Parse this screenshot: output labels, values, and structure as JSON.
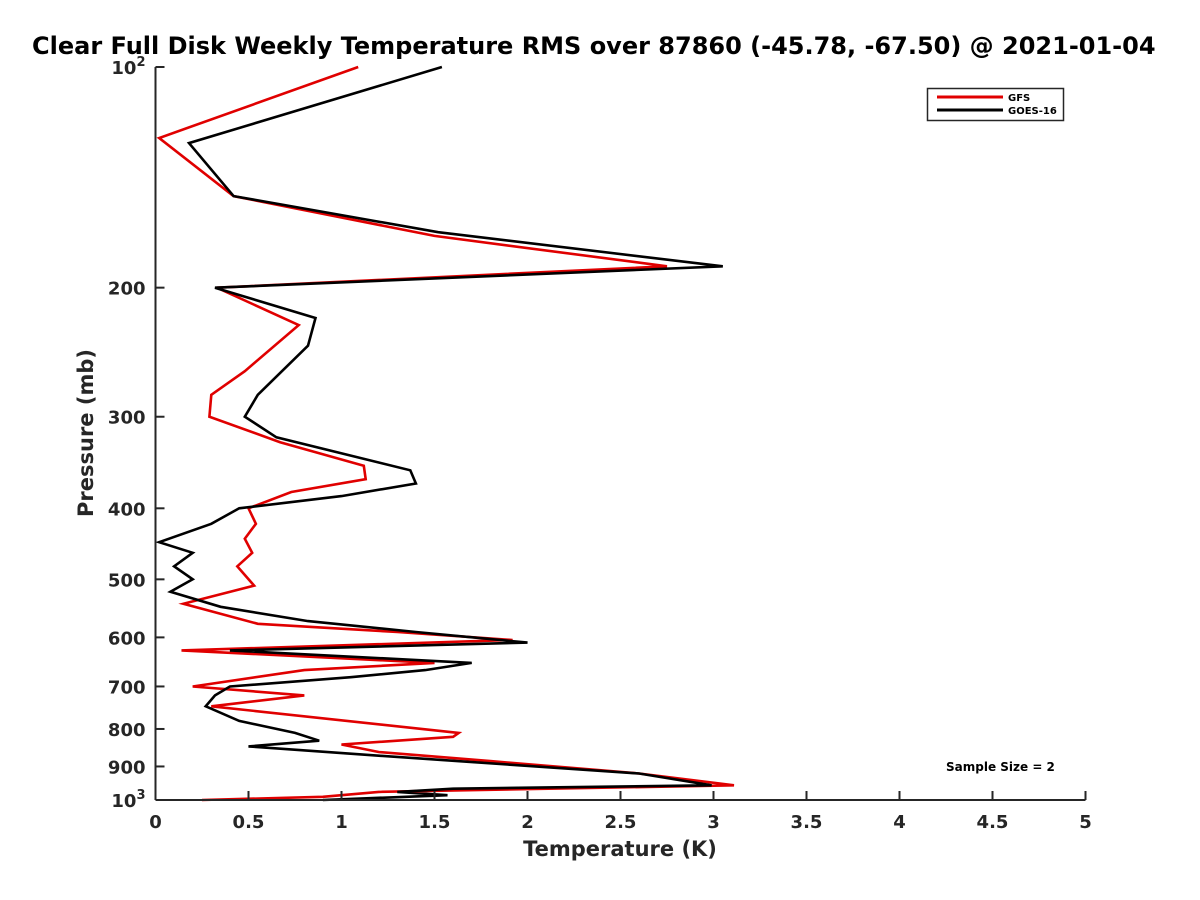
{
  "chart_data": {
    "type": "line",
    "title": "Clear Full Disk Weekly Temperature RMS over 87860 (-45.78, -67.50) @ 2021-01-04",
    "xlabel": "Temperature (K)",
    "ylabel": "Pressure (mb)",
    "xlim": [
      0,
      5
    ],
    "ylim": [
      1000,
      100
    ],
    "y_scale": "log",
    "y_reversed": true,
    "x_ticks": [
      0,
      0.5,
      1,
      1.5,
      2,
      2.5,
      3,
      3.5,
      4,
      4.5,
      5
    ],
    "x_tick_labels": [
      "0",
      "0.5",
      "1",
      "1.5",
      "2",
      "2.5",
      "3",
      "3.5",
      "4",
      "4.5",
      "5"
    ],
    "y_ticks": [
      {
        "value": 100,
        "base": "10",
        "exp": "2"
      },
      {
        "value": 200,
        "label": "200"
      },
      {
        "value": 300,
        "label": "300"
      },
      {
        "value": 400,
        "label": "400"
      },
      {
        "value": 500,
        "label": "500"
      },
      {
        "value": 600,
        "label": "600"
      },
      {
        "value": 700,
        "label": "700"
      },
      {
        "value": 800,
        "label": "800"
      },
      {
        "value": 900,
        "label": "900"
      },
      {
        "value": 1000,
        "base": "10",
        "exp": "3"
      }
    ],
    "grid": false,
    "legend_position": "top-right",
    "annotation": "Sample Size = 2",
    "series": [
      {
        "name": "GFS",
        "color": "#e00000",
        "points": [
          [
            1.09,
            100
          ],
          [
            0.02,
            125
          ],
          [
            0.42,
            150
          ],
          [
            1.5,
            170
          ],
          [
            2.75,
            187
          ],
          [
            0.33,
            200
          ],
          [
            0.77,
            225
          ],
          [
            0.48,
            260
          ],
          [
            0.3,
            280
          ],
          [
            0.29,
            300
          ],
          [
            0.67,
            325
          ],
          [
            1.12,
            350
          ],
          [
            1.13,
            365
          ],
          [
            0.73,
            380
          ],
          [
            0.5,
            400
          ],
          [
            0.54,
            420
          ],
          [
            0.48,
            440
          ],
          [
            0.52,
            460
          ],
          [
            0.44,
            480
          ],
          [
            0.53,
            510
          ],
          [
            0.15,
            540
          ],
          [
            0.55,
            575
          ],
          [
            1.3,
            590
          ],
          [
            1.92,
            605
          ],
          [
            0.14,
            625
          ],
          [
            1.5,
            650
          ],
          [
            0.8,
            665
          ],
          [
            0.2,
            700
          ],
          [
            0.8,
            720
          ],
          [
            0.3,
            745
          ],
          [
            1.63,
            810
          ],
          [
            1.6,
            820
          ],
          [
            1.0,
            840
          ],
          [
            1.2,
            860
          ],
          [
            1.8,
            885
          ],
          [
            2.6,
            920
          ],
          [
            3.11,
            955
          ],
          [
            1.2,
            975
          ],
          [
            0.9,
            990
          ],
          [
            0.25,
            1000
          ]
        ]
      },
      {
        "name": "GOES-16",
        "color": "#000000",
        "points": [
          [
            1.54,
            100
          ],
          [
            0.18,
            127
          ],
          [
            0.42,
            150
          ],
          [
            1.52,
            168
          ],
          [
            3.05,
            187
          ],
          [
            0.32,
            200
          ],
          [
            0.86,
            220
          ],
          [
            0.82,
            240
          ],
          [
            0.55,
            280
          ],
          [
            0.48,
            300
          ],
          [
            0.65,
            320
          ],
          [
            1.37,
            355
          ],
          [
            1.4,
            370
          ],
          [
            1.0,
            385
          ],
          [
            0.45,
            400
          ],
          [
            0.3,
            420
          ],
          [
            0.02,
            445
          ],
          [
            0.2,
            460
          ],
          [
            0.1,
            480
          ],
          [
            0.2,
            500
          ],
          [
            0.08,
            520
          ],
          [
            0.35,
            545
          ],
          [
            0.82,
            570
          ],
          [
            1.4,
            590
          ],
          [
            2.0,
            610
          ],
          [
            0.4,
            625
          ],
          [
            1.7,
            650
          ],
          [
            1.45,
            665
          ],
          [
            1.05,
            680
          ],
          [
            0.4,
            700
          ],
          [
            0.32,
            720
          ],
          [
            0.27,
            745
          ],
          [
            0.45,
            780
          ],
          [
            0.75,
            810
          ],
          [
            0.88,
            830
          ],
          [
            0.5,
            845
          ],
          [
            1.2,
            870
          ],
          [
            2.6,
            920
          ],
          [
            2.99,
            955
          ],
          [
            1.6,
            965
          ],
          [
            1.3,
            975
          ],
          [
            1.57,
            985
          ],
          [
            0.9,
            1000
          ]
        ]
      }
    ]
  }
}
